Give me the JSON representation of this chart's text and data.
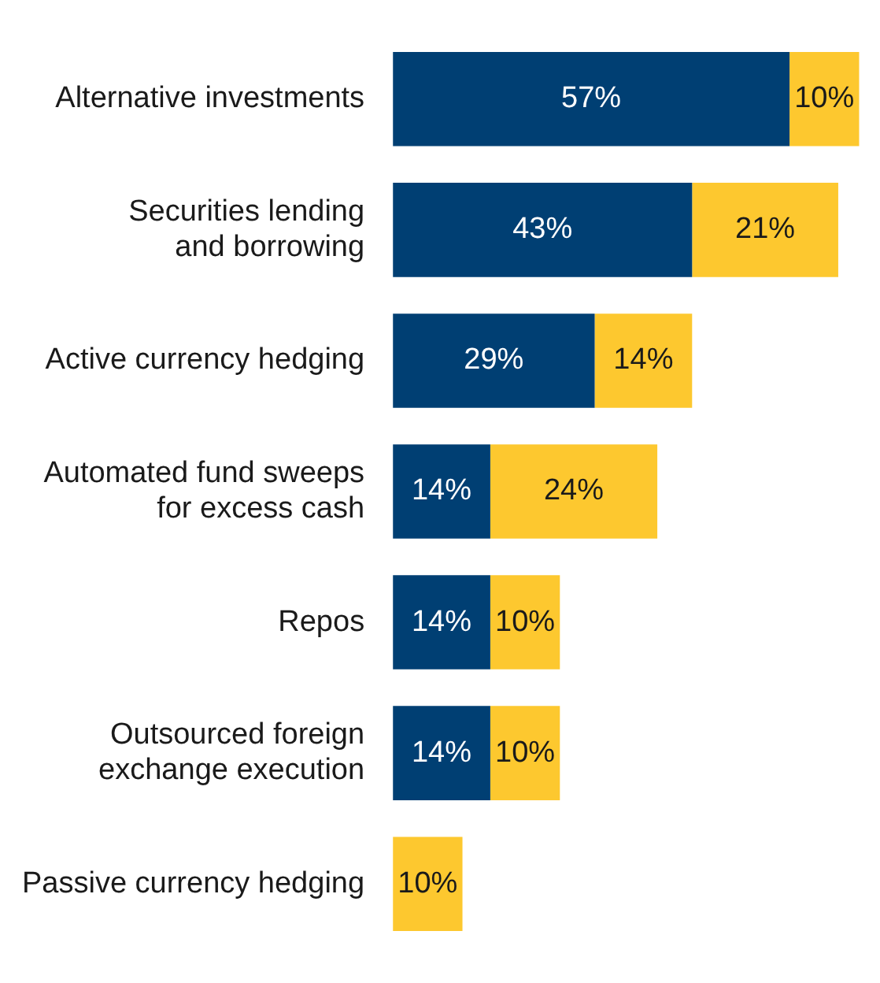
{
  "chart_data": {
    "type": "bar",
    "orientation": "horizontal",
    "stacked": true,
    "legend": false,
    "categories": [
      "Alternative investments",
      "Securities lending\nand borrowing",
      "Active currency hedging",
      "Automated fund sweeps\nfor excess cash",
      "Repos",
      "Outsourced foreign\nexchange execution",
      "Passive currency hedging"
    ],
    "series": [
      {
        "color": "#003f73",
        "values": [
          57,
          43,
          29,
          14,
          14,
          14,
          null
        ],
        "value_labels": [
          "57%",
          "43%",
          "29%",
          "14%",
          "14%",
          "14%",
          null
        ]
      },
      {
        "color": "#fdc82f",
        "values": [
          10,
          21,
          14,
          24,
          10,
          10,
          10
        ],
        "value_labels": [
          "10%",
          "21%",
          "14%",
          "24%",
          "10%",
          "10%",
          "10%"
        ]
      }
    ]
  }
}
